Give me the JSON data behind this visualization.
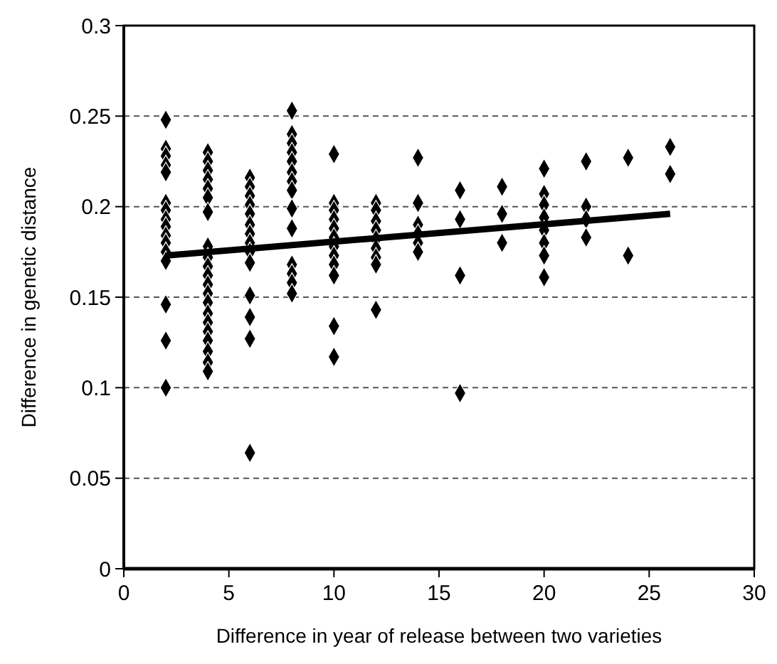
{
  "chart_data": {
    "type": "scatter",
    "xlabel": "Difference in year of release between two varieties",
    "ylabel": "Difference in genetic distance",
    "xlim": [
      0,
      30
    ],
    "xticks": [
      0,
      5,
      10,
      15,
      20,
      25,
      30
    ],
    "ylim": [
      0,
      0.3
    ],
    "yticks": [
      0,
      0.05,
      0.1,
      0.15,
      0.2,
      0.25,
      0.3
    ],
    "grid": "y",
    "series": [
      {
        "marker": "diamond",
        "color": "#000000",
        "x": [
          2,
          2,
          2,
          2,
          2,
          2,
          2,
          2,
          2,
          2,
          2,
          2,
          2,
          2,
          2,
          2,
          4,
          4,
          4,
          4,
          4,
          4,
          4,
          4,
          4,
          4,
          4,
          4,
          4,
          4,
          4,
          4,
          4,
          4,
          4,
          4,
          4,
          6,
          6,
          6,
          6,
          6,
          6,
          6,
          6,
          6,
          6,
          6,
          6,
          6,
          6,
          8,
          8,
          8,
          8,
          8,
          8,
          8,
          8,
          8,
          8,
          8,
          8,
          8,
          8,
          10,
          10,
          10,
          10,
          10,
          10,
          10,
          10,
          10,
          10,
          10,
          10,
          12,
          12,
          12,
          12,
          12,
          12,
          12,
          12,
          12,
          14,
          14,
          14,
          14,
          14,
          14,
          16,
          16,
          16,
          16,
          18,
          18,
          18,
          20,
          20,
          20,
          20,
          20,
          20,
          20,
          20,
          22,
          22,
          22,
          22,
          24,
          24,
          26,
          26
        ],
        "values": [
          0.248,
          0.232,
          0.228,
          0.223,
          0.219,
          0.202,
          0.198,
          0.193,
          0.189,
          0.184,
          0.18,
          0.175,
          0.17,
          0.146,
          0.126,
          0.1,
          0.23,
          0.225,
          0.22,
          0.215,
          0.21,
          0.205,
          0.197,
          0.178,
          0.172,
          0.167,
          0.162,
          0.157,
          0.152,
          0.147,
          0.141,
          0.136,
          0.131,
          0.126,
          0.12,
          0.114,
          0.109,
          0.216,
          0.211,
          0.206,
          0.201,
          0.196,
          0.19,
          0.185,
          0.18,
          0.175,
          0.169,
          0.151,
          0.139,
          0.127,
          0.064,
          0.253,
          0.24,
          0.235,
          0.23,
          0.225,
          0.219,
          0.214,
          0.209,
          0.199,
          0.188,
          0.168,
          0.163,
          0.158,
          0.152,
          0.229,
          0.202,
          0.198,
          0.193,
          0.188,
          0.183,
          0.178,
          0.173,
          0.168,
          0.162,
          0.134,
          0.117,
          0.202,
          0.198,
          0.192,
          0.187,
          0.182,
          0.177,
          0.172,
          0.168,
          0.143,
          0.227,
          0.202,
          0.19,
          0.185,
          0.18,
          0.175,
          0.209,
          0.193,
          0.162,
          0.097,
          0.211,
          0.196,
          0.18,
          0.221,
          0.207,
          0.201,
          0.194,
          0.187,
          0.18,
          0.173,
          0.161,
          0.225,
          0.2,
          0.193,
          0.183,
          0.227,
          0.173,
          0.233,
          0.218
        ]
      },
      {
        "type": "line",
        "color": "#000000",
        "x": [
          2,
          26
        ],
        "values": [
          0.173,
          0.196
        ],
        "line_style": "solid"
      }
    ]
  }
}
